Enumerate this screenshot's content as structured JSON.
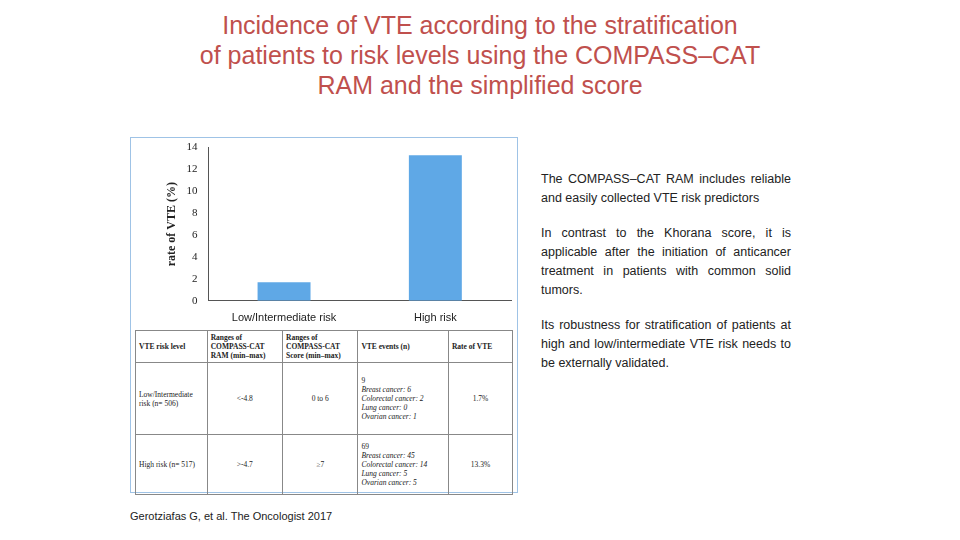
{
  "header": {
    "title": [
      "Incidence of VTE according to the stratification",
      "of patients to risk levels using the COMPASS–CAT",
      "RAM and the simplified score"
    ]
  },
  "chart_data": {
    "type": "bar",
    "y_label": "rate of VTE (%)",
    "categories": [
      "Low/Intermediate risk",
      "High risk"
    ],
    "values": [
      1.7,
      13.3
    ],
    "color": "#5fa8e6",
    "ylim": [
      0,
      14
    ],
    "yticks": [
      0,
      2,
      4,
      6,
      8,
      10,
      12,
      14
    ],
    "grid": false
  },
  "table": {
    "header": [
      "VTE risk level",
      "Ranges of COMPASS-CAT RAM (min–max)",
      "Ranges of COMPASS-CAT Score (min–max)",
      "VTE events (n)",
      "Rate of VTE"
    ],
    "rows": [
      [
        "Low/Intermediate risk (n= 506)",
        "<-4.8",
        "0 to 6",
        {
          "total": "9",
          "details": [
            "Breast cancer: 6",
            "Colorectal cancer: 2",
            "Lung cancer: 0",
            "Ovarian cancer: 1"
          ]
        },
        "1.7%"
      ],
      [
        "High risk (n= 517)",
        ">-4.7",
        "≥7",
        {
          "total": "69",
          "details": [
            "Breast cancer: 45",
            "Colorectal cancer: 14",
            "Lung cancer: 5",
            "Ovarian cancer: 5"
          ]
        },
        "13.3%"
      ]
    ]
  },
  "text": [
    "The COMPASS–CAT RAM includes reliable and easily collected VTE risk predictors",
    "In contrast to the Khorana score, it is applicable after the initiation of anticancer treatment in patients with common solid tumors.",
    "Its robustness for stratification of patients at high and low/intermediate VTE risk needs to be externally validated."
  ],
  "source": "Gerotziafas G, et al. The Oncologist 2017"
}
